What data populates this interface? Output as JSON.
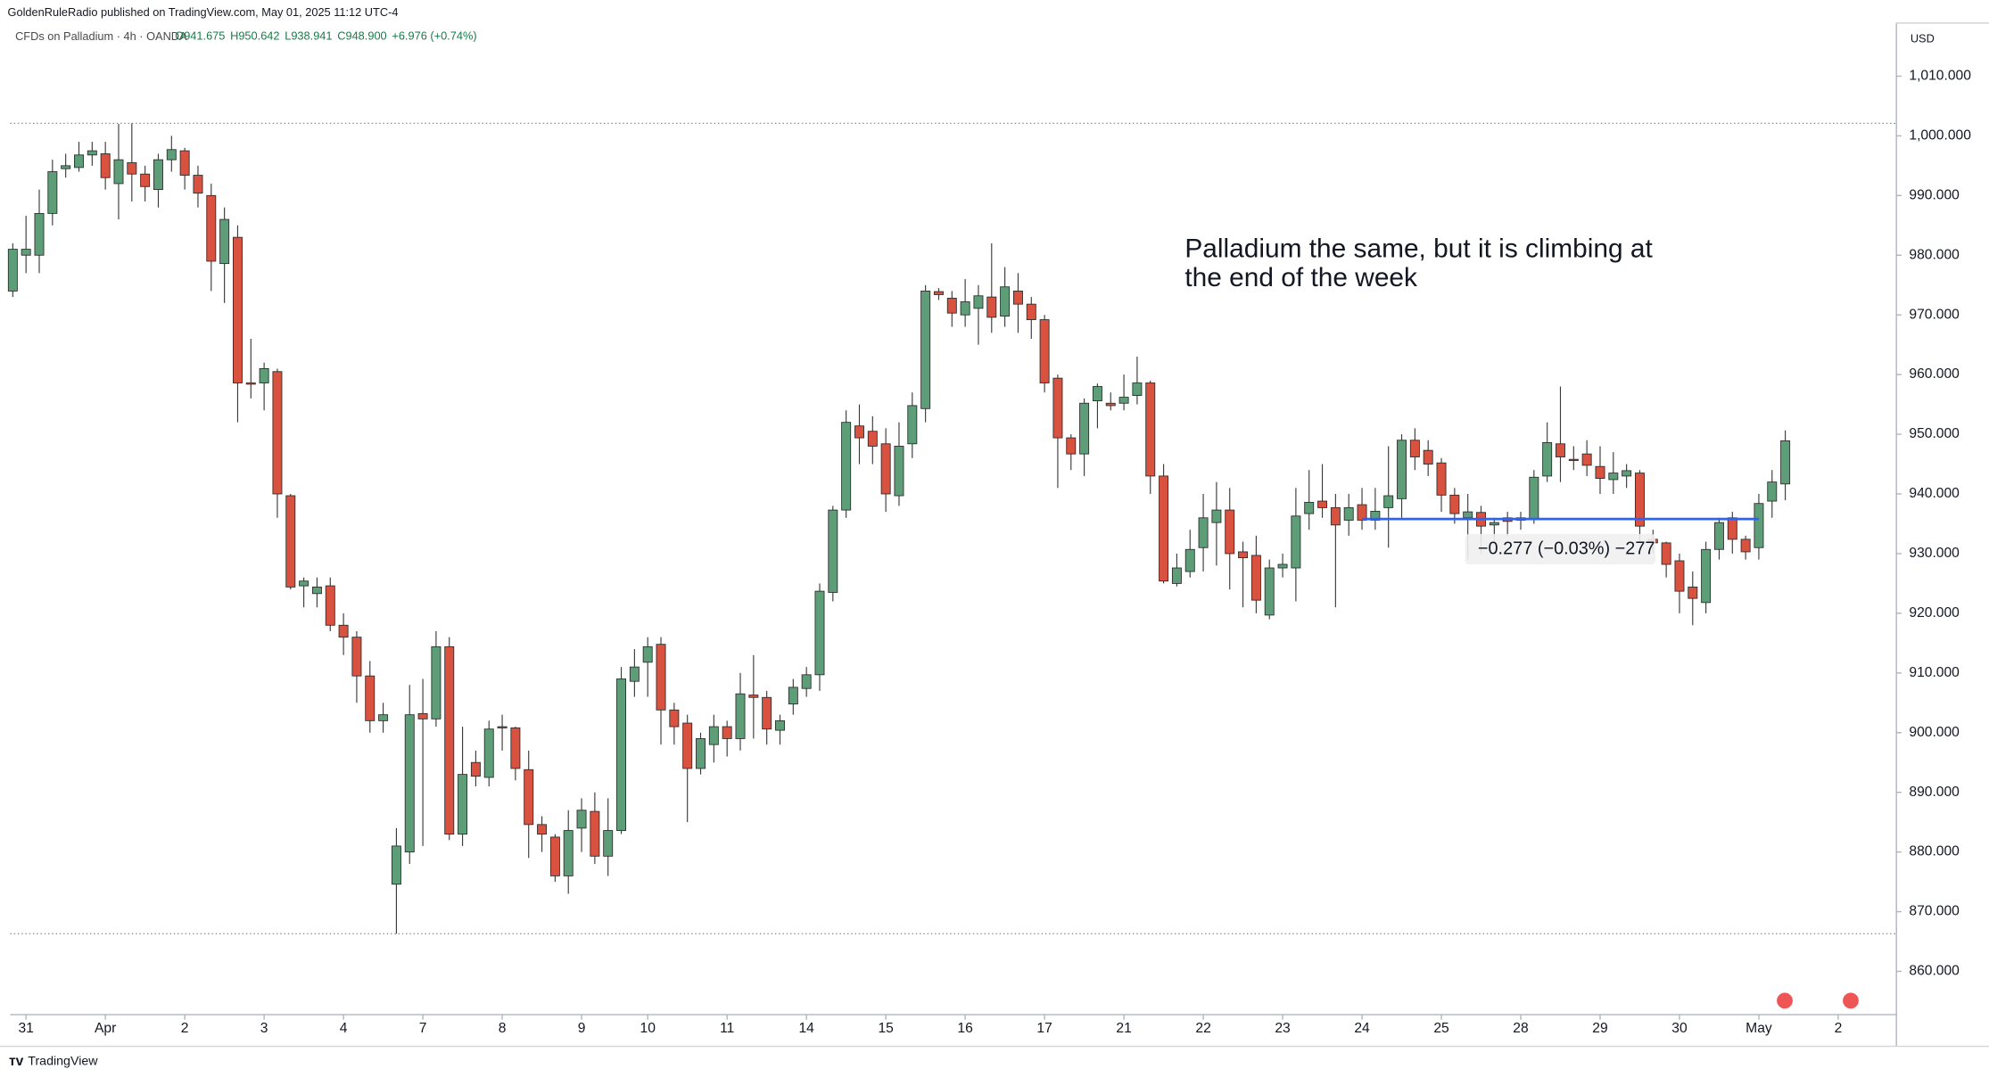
{
  "chart_data": {
    "type": "candlestick",
    "publisher": "GoldenRuleRadio published on TradingView.com, May 01, 2025 11:12 UTC-4",
    "symbol": "CFDs on Palladium · 4h · OANDA",
    "legend": [
      "O941.675",
      "H950.642",
      "L938.941",
      "C948.900",
      "+6.976 (+0.74%)"
    ],
    "currency": "USD",
    "annotation": "Palladium the same, but it is climbing at the end of the week",
    "footer": "TradingView",
    "up_color": "#5d9e78",
    "down_color": "#d9513f",
    "candles": [
      [
        974,
        982,
        973,
        981
      ],
      [
        980,
        986.6,
        977,
        981
      ],
      [
        980,
        991,
        977,
        987
      ],
      [
        987,
        996,
        985,
        994
      ],
      [
        994.5,
        997,
        993,
        995
      ],
      [
        994.7,
        999,
        994,
        996.8
      ],
      [
        996.8,
        999,
        995,
        997.5
      ],
      [
        997,
        999,
        991,
        993
      ],
      [
        992,
        1002,
        986,
        996
      ],
      [
        995.5,
        1002.1,
        989,
        993.6
      ],
      [
        993.6,
        995,
        989,
        991.5
      ],
      [
        991,
        997,
        988,
        996
      ],
      [
        996,
        1000,
        994,
        997.7
      ],
      [
        997.5,
        998,
        991,
        993.4
      ],
      [
        993.4,
        995,
        988,
        990.4
      ],
      [
        990,
        992,
        974,
        979
      ],
      [
        978.6,
        988,
        972,
        986
      ],
      [
        983,
        985,
        952,
        958.6
      ],
      [
        958.6,
        966,
        956,
        958.4
      ],
      [
        958.6,
        962,
        954,
        961
      ],
      [
        960.5,
        961,
        936,
        940
      ],
      [
        939.7,
        940,
        924,
        924.4
      ],
      [
        924.6,
        926,
        921,
        925.4
      ],
      [
        923.3,
        926,
        921,
        924.4
      ],
      [
        924.6,
        926,
        917,
        918
      ],
      [
        918,
        920,
        913,
        916
      ],
      [
        916,
        917,
        905,
        909.5
      ],
      [
        909.5,
        912,
        900,
        902
      ],
      [
        902,
        905,
        900,
        903
      ],
      [
        874.6,
        884,
        866.3,
        881
      ],
      [
        880,
        908,
        878,
        903
      ],
      [
        903.2,
        909,
        881,
        902.3
      ],
      [
        902.3,
        917,
        901,
        914.4
      ],
      [
        914.4,
        916,
        882,
        883
      ],
      [
        883,
        901,
        881,
        893
      ],
      [
        895,
        897,
        891,
        892.7
      ],
      [
        892.5,
        902,
        891,
        900.6
      ],
      [
        901,
        903,
        897,
        900.8
      ],
      [
        900.8,
        901,
        892,
        894
      ],
      [
        893.8,
        897,
        879,
        884.6
      ],
      [
        884.6,
        886,
        880,
        883
      ],
      [
        882.5,
        883,
        875,
        876
      ],
      [
        876,
        887,
        873,
        883.6
      ],
      [
        884,
        889,
        880,
        887
      ],
      [
        886.8,
        890,
        878,
        879.3
      ],
      [
        879.3,
        889,
        876,
        883.6
      ],
      [
        883.6,
        911,
        883,
        909
      ],
      [
        908.6,
        914,
        906,
        911
      ],
      [
        911.8,
        916,
        906,
        914.4
      ],
      [
        914.8,
        916,
        898,
        903.8
      ],
      [
        903.8,
        905,
        898,
        901
      ],
      [
        901.6,
        903,
        885,
        894
      ],
      [
        894,
        900,
        893,
        899
      ],
      [
        898,
        903,
        895,
        901
      ],
      [
        901,
        902,
        896,
        899
      ],
      [
        899,
        910,
        897,
        906.5
      ],
      [
        906.3,
        913,
        899,
        905.9
      ],
      [
        905.9,
        907,
        898,
        900.6
      ],
      [
        900.4,
        903,
        898,
        902
      ],
      [
        904.8,
        909,
        903,
        907.6
      ],
      [
        907.4,
        911,
        906,
        909.7
      ],
      [
        909.7,
        925,
        907,
        923.7
      ],
      [
        923.5,
        938,
        922,
        937.3
      ],
      [
        937.3,
        954,
        936,
        952
      ],
      [
        951.4,
        955,
        945,
        949.4
      ],
      [
        950.5,
        953,
        945,
        948
      ],
      [
        948.4,
        951,
        937,
        940
      ],
      [
        939.7,
        952,
        938,
        948
      ],
      [
        948.4,
        957,
        946,
        954.8
      ],
      [
        954.3,
        975,
        952,
        974
      ],
      [
        973.9,
        974.5,
        972.5,
        973.4
      ],
      [
        972.8,
        974,
        968,
        970.3
      ],
      [
        970,
        976,
        968,
        972.2
      ],
      [
        971.1,
        975,
        965,
        973.2
      ],
      [
        973,
        982,
        967,
        969.6
      ],
      [
        969.8,
        978,
        968,
        974.7
      ],
      [
        974,
        977,
        967,
        971.8
      ],
      [
        971.8,
        973,
        966,
        969.2
      ],
      [
        969.2,
        970,
        957,
        958.6
      ],
      [
        959.4,
        960,
        941,
        949.4
      ],
      [
        949.4,
        950,
        944,
        946.7
      ],
      [
        946.7,
        956,
        943,
        955.2
      ],
      [
        955.6,
        958.5,
        951,
        958
      ],
      [
        955.2,
        957,
        954,
        954.8
      ],
      [
        955.2,
        960,
        954,
        956.2
      ],
      [
        956.5,
        963,
        955,
        958.6
      ],
      [
        958.6,
        959,
        940,
        943
      ],
      [
        943,
        945,
        925,
        925.4
      ],
      [
        925,
        930,
        924.5,
        927.6
      ],
      [
        927,
        934,
        926,
        930.7
      ],
      [
        931,
        940,
        927,
        936
      ],
      [
        935.2,
        942,
        928,
        937.3
      ],
      [
        937.3,
        941,
        924,
        930
      ],
      [
        930.3,
        932,
        921,
        929.3
      ],
      [
        929.7,
        933,
        920,
        922.2
      ],
      [
        919.7,
        929,
        919,
        927.6
      ],
      [
        927.6,
        930,
        926,
        928.2
      ],
      [
        927.6,
        941,
        922,
        936.3
      ],
      [
        936.7,
        944,
        934,
        938.6
      ],
      [
        938.8,
        945,
        936,
        937.7
      ],
      [
        937.7,
        940,
        921,
        934.8
      ],
      [
        935.6,
        940,
        933,
        937.7
      ],
      [
        938.2,
        941,
        934,
        935.6
      ],
      [
        935.6,
        941,
        934,
        937.1
      ],
      [
        937.7,
        948,
        931,
        939.7
      ],
      [
        939.2,
        950,
        936,
        949
      ],
      [
        949,
        951,
        944,
        946.2
      ],
      [
        947.3,
        949,
        943,
        945
      ],
      [
        945.2,
        946,
        937,
        939.8
      ],
      [
        939.8,
        941,
        935,
        936.7
      ],
      [
        936,
        940,
        929,
        937
      ],
      [
        936.9,
        938,
        930,
        934.6
      ],
      [
        934.8,
        936,
        932,
        935.2
      ],
      [
        936,
        937,
        933,
        935.4
      ],
      [
        935.6,
        937,
        934,
        936
      ],
      [
        935.8,
        944,
        935,
        942.8
      ],
      [
        943,
        952,
        942,
        948.6
      ],
      [
        948.4,
        958,
        942,
        946.2
      ],
      [
        945.8,
        948,
        944,
        945.6
      ],
      [
        946.7,
        949,
        943,
        944.8
      ],
      [
        944.6,
        948,
        940,
        942.6
      ],
      [
        942.4,
        947,
        940,
        943.5
      ],
      [
        943,
        945,
        941,
        943.9
      ],
      [
        943.5,
        944,
        932,
        934.6
      ],
      [
        932.4,
        934,
        930,
        931.8
      ],
      [
        931.8,
        932,
        926,
        928.2
      ],
      [
        928.8,
        930,
        920,
        923.7
      ],
      [
        924.4,
        927,
        918,
        922.5
      ],
      [
        921.8,
        932,
        920,
        930.7
      ],
      [
        930.7,
        936,
        929,
        935.2
      ],
      [
        936,
        937,
        930,
        932.4
      ],
      [
        932.4,
        933,
        929,
        930.3
      ],
      [
        931,
        940,
        929,
        938.4
      ],
      [
        938.8,
        944,
        936,
        942
      ],
      [
        941.675,
        950.642,
        938.941,
        948.9
      ]
    ],
    "xlim": [
      -0.2,
      142.4
    ],
    "xticks": [
      {
        "value": 1,
        "label": "31"
      },
      {
        "value": 7,
        "label": "Apr"
      },
      {
        "value": 13,
        "label": "2"
      },
      {
        "value": 19,
        "label": "3"
      },
      {
        "value": 25,
        "label": "4"
      },
      {
        "value": 31,
        "label": "7"
      },
      {
        "value": 37,
        "label": "8"
      },
      {
        "value": 43,
        "label": "9"
      },
      {
        "value": 48,
        "label": "10"
      },
      {
        "value": 54,
        "label": "11"
      },
      {
        "value": 60,
        "label": "14"
      },
      {
        "value": 66,
        "label": "15"
      },
      {
        "value": 72,
        "label": "16"
      },
      {
        "value": 78,
        "label": "17"
      },
      {
        "value": 84,
        "label": "21"
      },
      {
        "value": 90,
        "label": "22"
      },
      {
        "value": 96,
        "label": "23"
      },
      {
        "value": 102,
        "label": "24"
      },
      {
        "value": 108,
        "label": "25"
      },
      {
        "value": 114,
        "label": "28"
      },
      {
        "value": 120,
        "label": "29"
      },
      {
        "value": 126,
        "label": "30"
      },
      {
        "value": 132,
        "label": "May"
      },
      {
        "value": 138,
        "label": "2"
      }
    ],
    "ylim": [
      852.75,
      1018.9
    ],
    "yticks": [
      {
        "value": 860,
        "label": "860.000"
      },
      {
        "value": 870,
        "label": "870.000"
      },
      {
        "value": 880,
        "label": "880.000"
      },
      {
        "value": 890,
        "label": "890.000"
      },
      {
        "value": 900,
        "label": "900.000"
      },
      {
        "value": 910,
        "label": "910.000"
      },
      {
        "value": 920,
        "label": "920.000"
      },
      {
        "value": 930,
        "label": "930.000"
      },
      {
        "value": 940,
        "label": "940.000"
      },
      {
        "value": 950,
        "label": "950.000"
      },
      {
        "value": 960,
        "label": "960.000"
      },
      {
        "value": 970,
        "label": "970.000"
      },
      {
        "value": 980,
        "label": "980.000"
      },
      {
        "value": 990,
        "label": "990.000"
      },
      {
        "value": 1000,
        "label": "1,000.000"
      },
      {
        "value": 1010,
        "label": "1,010.000"
      }
    ],
    "range_lines": [
      1002.1,
      866.3
    ],
    "trend_line": {
      "price": 935.8,
      "start": 102,
      "end": 132,
      "color": "#2962ff",
      "label": "−0.277 (−0.03%) −277"
    }
  }
}
